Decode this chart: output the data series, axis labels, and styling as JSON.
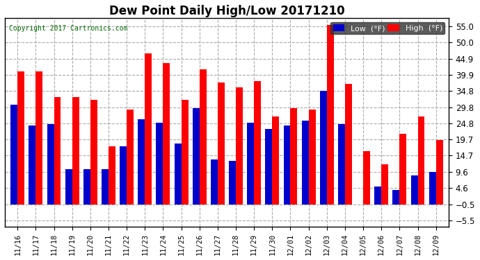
{
  "title": "Dew Point Daily High/Low 20171210",
  "copyright": "Copyright 2017 Cartronics.com",
  "dates": [
    "11/16",
    "11/17",
    "11/18",
    "11/19",
    "11/20",
    "11/21",
    "11/22",
    "11/23",
    "11/24",
    "11/25",
    "11/26",
    "11/27",
    "11/28",
    "11/29",
    "11/30",
    "12/01",
    "12/02",
    "12/03",
    "12/04",
    "12/05",
    "12/06",
    "12/07",
    "12/08",
    "12/09"
  ],
  "high": [
    41.0,
    41.0,
    33.0,
    33.0,
    32.0,
    17.5,
    29.0,
    46.5,
    43.5,
    32.0,
    41.5,
    37.5,
    36.0,
    38.0,
    27.0,
    29.5,
    29.0,
    55.5,
    37.0,
    16.0,
    12.0,
    21.5,
    27.0,
    19.5
  ],
  "low": [
    30.5,
    24.0,
    24.5,
    10.5,
    10.5,
    10.5,
    17.5,
    26.0,
    25.0,
    18.5,
    29.5,
    13.5,
    13.0,
    25.0,
    23.0,
    24.0,
    25.5,
    35.0,
    24.5,
    -0.5,
    5.0,
    4.0,
    8.5,
    9.5
  ],
  "high_color": "#FF0000",
  "low_color": "#0000CC",
  "bg_color": "#FFFFFF",
  "plot_bg_color": "#FFFFFF",
  "grid_color": "#AAAAAA",
  "yticks": [
    -5.5,
    -0.5,
    4.6,
    9.6,
    14.7,
    19.7,
    24.8,
    29.8,
    34.8,
    39.9,
    44.9,
    50.0,
    55.0
  ],
  "ymin": -7.5,
  "ymax": 57.5,
  "bar_width": 0.38,
  "bar_bottom": -0.5
}
